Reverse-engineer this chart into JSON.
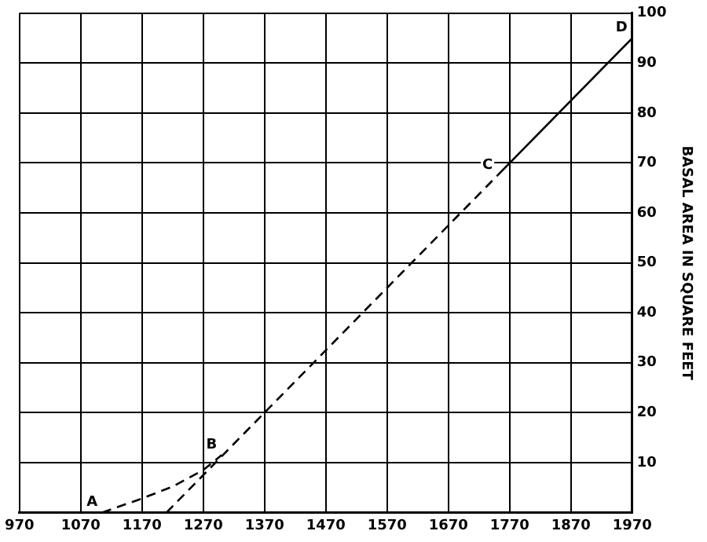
{
  "chart_data": {
    "type": "line",
    "ylabel": "BASAL AREA IN SQUARE FEET",
    "xlim": [
      970,
      1970
    ],
    "xticks": [
      970,
      1070,
      1170,
      1270,
      1370,
      1470,
      1570,
      1670,
      1770,
      1870,
      1970
    ],
    "ylim": [
      0,
      100
    ],
    "yticks": [
      {
        "value": 0,
        "label": null
      },
      10,
      20,
      30,
      40,
      50,
      60,
      70,
      80,
      90,
      100
    ],
    "grid": true,
    "legend": false,
    "marker": "none",
    "series": [
      {
        "color": "#000000",
        "line_style": "dashed",
        "x": [
          1105,
          1170,
          1220,
          1270,
          1300
        ],
        "values": [
          0,
          2.8,
          5.2,
          8.5,
          11.5
        ]
      },
      {
        "color": "#000000",
        "line_style": "dashed",
        "x": [
          1210,
          1750
        ],
        "values": [
          0,
          67.5
        ]
      },
      {
        "color": "#000000",
        "line_style": "solid",
        "x": [
          1750,
          1970
        ],
        "values": [
          67.5,
          95
        ]
      }
    ],
    "annotations": [
      {
        "text": "A",
        "x": 1105,
        "y": 0
      },
      {
        "text": "B",
        "x": 1300,
        "y": 11.5
      },
      {
        "text": "C",
        "x": 1750,
        "y": 67.5
      },
      {
        "text": "D",
        "x": 1970,
        "y": 95
      }
    ]
  }
}
